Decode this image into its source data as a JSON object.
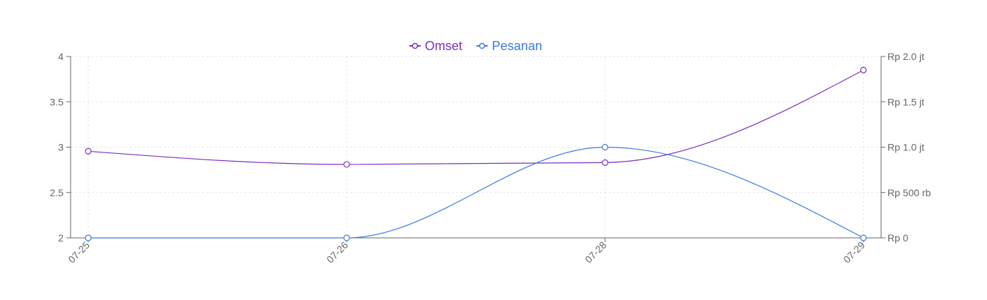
{
  "chart_data": {
    "type": "line",
    "title": "",
    "x": [
      "07-25",
      "07-26",
      "07-28",
      "07-29"
    ],
    "series": [
      {
        "name": "Omset",
        "axis": "right",
        "color": "#7b2fbe",
        "values": [
          955000,
          810000,
          830000,
          1850000
        ]
      },
      {
        "name": "Pesanan",
        "axis": "left",
        "color": "#3b7ae8",
        "values": [
          2,
          2,
          3,
          2
        ]
      }
    ],
    "left_axis": {
      "ylim": [
        2,
        4
      ],
      "ticks": [
        2,
        2.5,
        3,
        3.5,
        4
      ],
      "tick_labels": [
        "2",
        "2.5",
        "3",
        "3.5",
        "4"
      ]
    },
    "right_axis": {
      "ylim": [
        0,
        2000000
      ],
      "ticks": [
        0,
        500000,
        1000000,
        1500000,
        2000000
      ],
      "tick_labels": [
        "Rp 0",
        "Rp 500 rb",
        "Rp 1.0 jt",
        "Rp 1.5 jt",
        "Rp 2.0 jt"
      ]
    },
    "grid": true,
    "legend": "top-center"
  }
}
